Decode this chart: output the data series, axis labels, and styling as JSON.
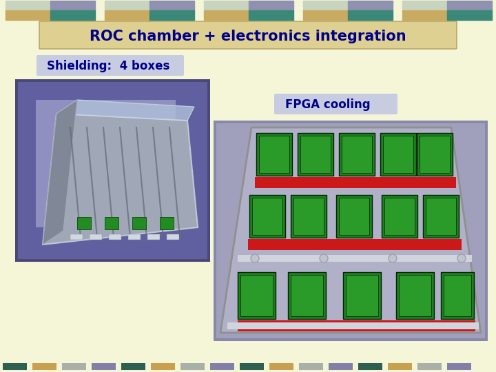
{
  "bg_color": "#f5f5d8",
  "title": "ROC chamber + electronics integration",
  "title_color": "#00008B",
  "title_bg_top": "#e8e0a0",
  "title_bg_bot": "#c8b870",
  "title_fontsize": 15,
  "label1": "Shielding:  4 boxes",
  "label1_color": "#00008B",
  "label1_bg": "#c8cce0",
  "label2": "FPGA cooling",
  "label2_color": "#00008B",
  "label2_bg": "#c8cce0",
  "top_stripe_colors": [
    "#c8d4c0",
    "#9090b0",
    "#c8aa60",
    "#3a8878"
  ],
  "bottom_stripe_colors": [
    "#2d6050",
    "#c8a050",
    "#a8b0a8",
    "#8080a8"
  ],
  "img1_bg": "#5a5878",
  "img2_bg": "#9898b0"
}
